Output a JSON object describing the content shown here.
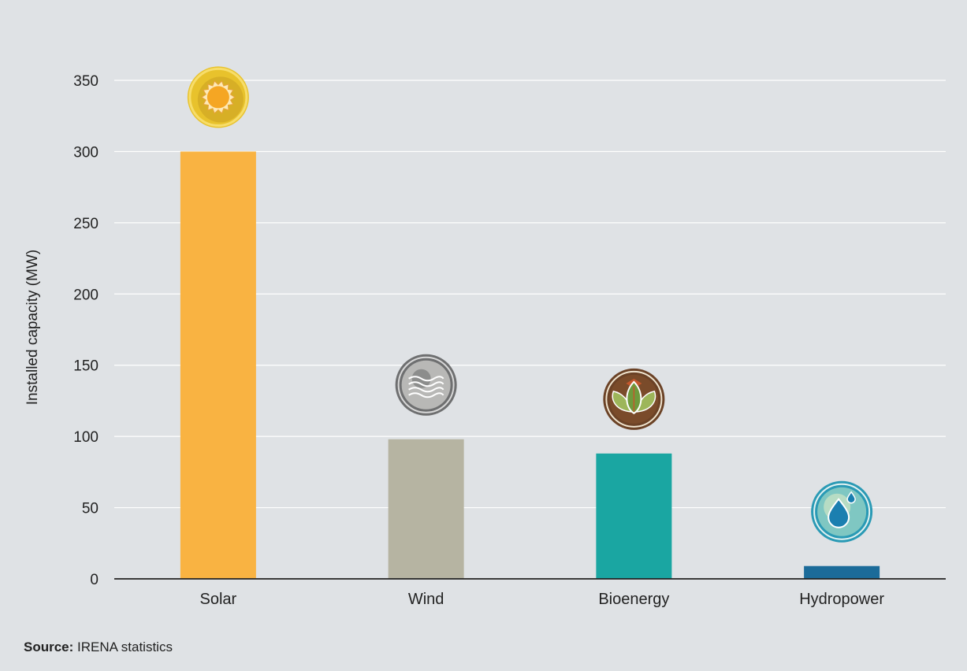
{
  "chart_data": {
    "type": "bar",
    "categories": [
      "Solar",
      "Wind",
      "Bioenergy",
      "Hydropower"
    ],
    "values": [
      300,
      98,
      88,
      9
    ],
    "ylabel": "Installed capacity (MW)",
    "xlabel": "",
    "ylim": [
      0,
      350
    ],
    "yticks": [
      0,
      50,
      100,
      150,
      200,
      250,
      300,
      350
    ],
    "grid": true,
    "bar_colors": [
      "#f9b342",
      "#b6b4a2",
      "#1aa6a2",
      "#1b6b99"
    ],
    "icons": [
      "sun-icon",
      "wind-icon",
      "leaf-icon",
      "water-drop-icon"
    ]
  },
  "source": {
    "label": "Source:",
    "text": " IRENA statistics"
  }
}
